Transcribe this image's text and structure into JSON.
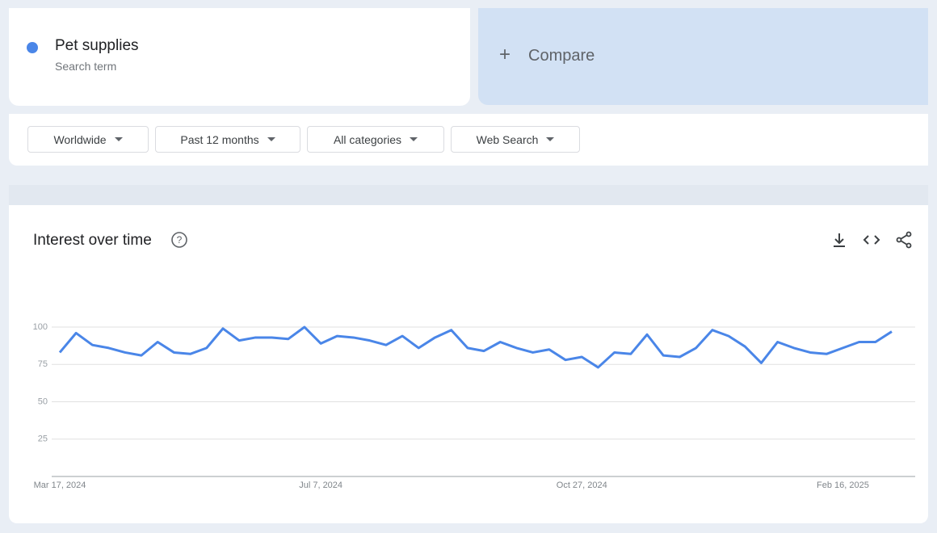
{
  "search_term": {
    "subtitle": "Search term"
  },
  "compare": "Compare",
  "filters": [
    "Worldwide",
    "Past 12 months",
    "All categories",
    "Web Search"
  ],
  "chart_data": {
    "type": "line",
    "title": "Interest over time",
    "categories": [
      "Mar 17, 2024",
      null,
      null,
      null,
      null,
      null,
      null,
      null,
      null,
      null,
      null,
      null,
      null,
      null,
      null,
      null,
      "Jul 7, 2024",
      null,
      null,
      null,
      null,
      null,
      null,
      null,
      null,
      null,
      null,
      null,
      null,
      null,
      null,
      null,
      "Oct 27, 2024",
      null,
      null,
      null,
      null,
      null,
      null,
      null,
      null,
      null,
      null,
      null,
      null,
      null,
      null,
      null,
      "Feb 16, 2025",
      null,
      null,
      null
    ],
    "series": [
      {
        "name": "Pet supplies",
        "color": "#4a86e8",
        "values": [
          83,
          96,
          88,
          86,
          83,
          81,
          90,
          83,
          82,
          86,
          99,
          91,
          93,
          93,
          92,
          100,
          89,
          94,
          93,
          91,
          88,
          94,
          86,
          93,
          98,
          86,
          84,
          90,
          86,
          83,
          85,
          78,
          80,
          73,
          83,
          82,
          95,
          81,
          80,
          86,
          98,
          94,
          87,
          76,
          90,
          86,
          83,
          82,
          86,
          90,
          90,
          97
        ]
      }
    ],
    "ylim": [
      0,
      100
    ],
    "yticks": [
      25,
      50,
      75,
      100
    ],
    "grid": true
  }
}
